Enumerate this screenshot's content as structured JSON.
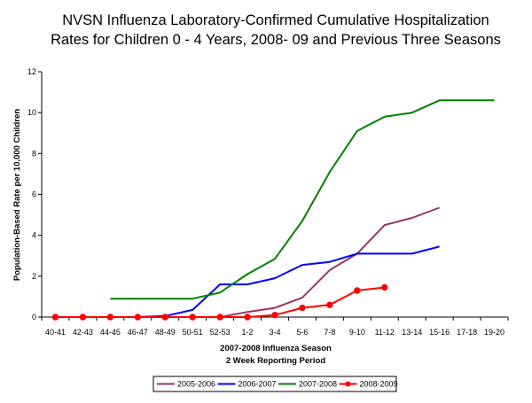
{
  "chart_data": {
    "type": "line",
    "title_lines": [
      "NVSN Influenza Laboratory-Confirmed Cumulative Hospitalization",
      "Rates for Children 0 - 4 Years, 2008- 09 and Previous Three Seasons"
    ],
    "xlabel_lines": [
      "2007-2008 Influenza Season",
      "2 Week Reporting Period"
    ],
    "ylabel": "Population-Based Rate per 10,000 Children",
    "categories": [
      "40-41",
      "42-43",
      "44-45",
      "46-47",
      "48-49",
      "50-51",
      "52-53",
      "1-2",
      "3-4",
      "5-6",
      "7-8",
      "9-10",
      "11-12",
      "13-14",
      "15-16",
      "17-18",
      "19-20"
    ],
    "ylim": [
      0,
      12
    ],
    "yticks": [
      0,
      2,
      4,
      6,
      8,
      10,
      12
    ],
    "grid": false,
    "legend_position": "bottom",
    "series": [
      {
        "name": "2005-2006",
        "color": "#993366",
        "markers": false,
        "values": [
          null,
          null,
          null,
          null,
          null,
          null,
          0.0,
          0.25,
          0.45,
          0.95,
          2.3,
          3.1,
          4.5,
          4.85,
          5.35,
          null,
          null
        ]
      },
      {
        "name": "2006-2007",
        "color": "#0000ff",
        "markers": false,
        "values": [
          null,
          null,
          null,
          0.0,
          0.05,
          0.35,
          1.6,
          1.6,
          1.9,
          2.55,
          2.7,
          3.1,
          3.1,
          3.1,
          3.45,
          null,
          null
        ]
      },
      {
        "name": "2007-2008",
        "color": "#008000",
        "markers": false,
        "values": [
          null,
          null,
          0.9,
          0.9,
          0.9,
          0.9,
          1.2,
          2.1,
          2.85,
          4.7,
          7.1,
          9.1,
          9.8,
          10.0,
          10.6,
          10.6,
          10.6
        ]
      },
      {
        "name": "2008-2009",
        "color": "#ff0000",
        "markers": true,
        "values": [
          0.0,
          0.0,
          0.0,
          0.0,
          0.0,
          0.0,
          0.0,
          0.0,
          0.1,
          0.45,
          0.6,
          1.3,
          1.45,
          null,
          null,
          null,
          null
        ]
      }
    ]
  }
}
